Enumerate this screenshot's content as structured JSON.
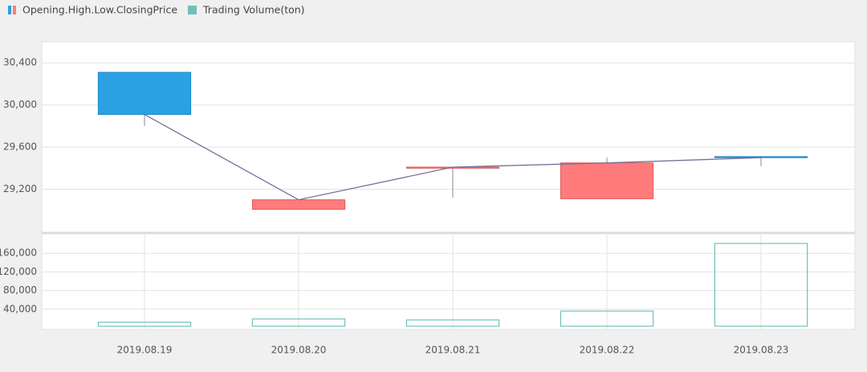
{
  "chart_data": [
    {
      "type": "candlestick",
      "name": "Opening.High.Low.ClosingPrice",
      "open": [
        30310,
        29010,
        29400,
        29110,
        29510
      ],
      "high": [
        30310,
        29100,
        29410,
        29500,
        29510
      ],
      "low": [
        29800,
        29010,
        29120,
        29110,
        29420
      ],
      "close": [
        29910,
        29100,
        29410,
        29450,
        29500
      ],
      "up_color": "#ff7b7b",
      "down_color": "#2aa1e2",
      "line_color": "#7a6f9a",
      "ylim": [
        28800,
        30600
      ],
      "yticks": [
        {
          "value": 29200,
          "label": "29,200"
        },
        {
          "value": 29600,
          "label": "29,600"
        },
        {
          "value": 30000,
          "label": "30,000"
        },
        {
          "value": 30400,
          "label": "30,400"
        }
      ],
      "grid": true
    },
    {
      "type": "bar",
      "name": "Trading Volume(ton)",
      "categories": [
        "2019.08.19",
        "2019.08.20",
        "2019.08.21",
        "2019.08.22",
        "2019.08.23"
      ],
      "values": [
        12000,
        19000,
        17000,
        36000,
        181000
      ],
      "color": "#6fc0bb",
      "ylim": [
        0,
        200000
      ],
      "yticks": [
        {
          "value": 40000,
          "label": "40,000"
        },
        {
          "value": 80000,
          "label": "80,000"
        },
        {
          "value": 120000,
          "label": "120,000"
        },
        {
          "value": 160000,
          "label": "160,000"
        }
      ],
      "grid": true
    }
  ]
}
